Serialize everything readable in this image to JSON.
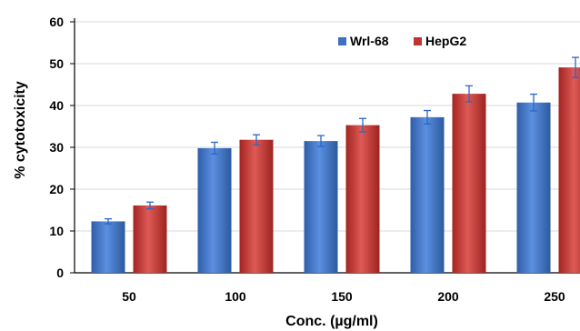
{
  "chart_data": {
    "type": "bar",
    "title": "",
    "xlabel": "Conc. (µg/ml)",
    "ylabel": "% cytotoxicity",
    "categories": [
      "50",
      "100",
      "150",
      "200",
      "250"
    ],
    "ylim": [
      0,
      60
    ],
    "yticks": [
      "0",
      "10",
      "20",
      "30",
      "40",
      "50",
      "60"
    ],
    "grid": true,
    "legend_position": "top-right",
    "series": [
      {
        "name": "Wrl-68",
        "color": "#3d6fc2",
        "values": [
          12.3,
          29.8,
          31.5,
          37.2,
          40.7
        ],
        "errors": [
          0.6,
          1.4,
          1.3,
          1.6,
          2.0
        ]
      },
      {
        "name": "HepG2",
        "color": "#c03531",
        "values": [
          16.1,
          31.8,
          35.3,
          42.8,
          49.1
        ],
        "errors": [
          0.8,
          1.2,
          1.6,
          1.9,
          2.4
        ]
      }
    ]
  }
}
